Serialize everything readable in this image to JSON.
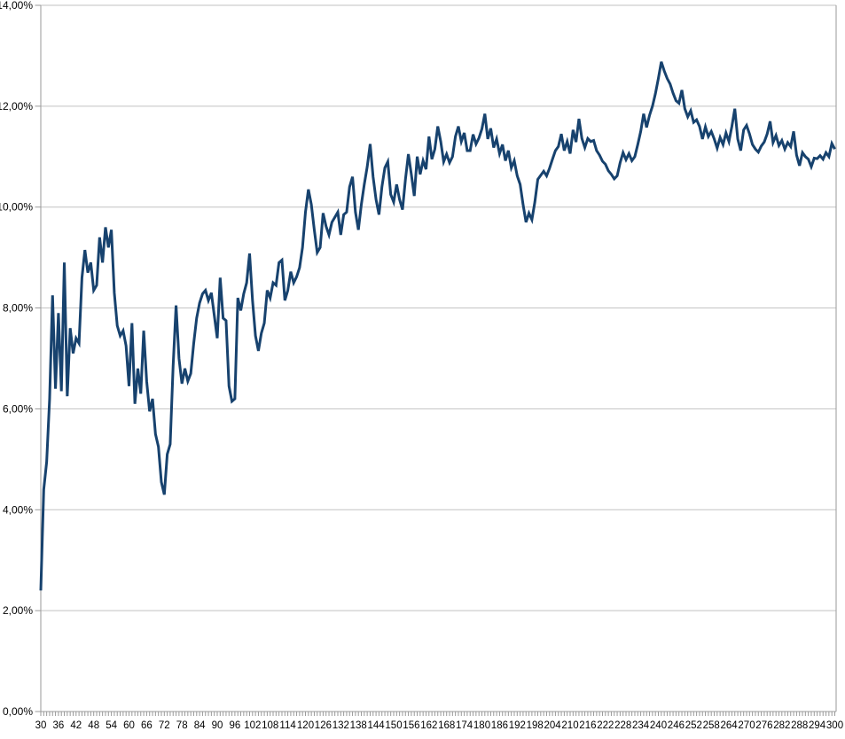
{
  "chart_data": {
    "type": "line",
    "title": "",
    "xlabel": "",
    "ylabel": "",
    "grid": true,
    "legend": false,
    "background": "#ffffff",
    "plot_border_color": "#9a9a9a",
    "gridline_color": "#c2c2c2",
    "tick_color": "#9a9a9a",
    "label_color": "#000000",
    "x_axis": {
      "start": 30,
      "end": 300,
      "step": 1,
      "minor_tick_every": 1,
      "label_every": 6,
      "tick_labels": [
        "30",
        "36",
        "42",
        "48",
        "54",
        "60",
        "66",
        "72",
        "78",
        "84",
        "90",
        "96",
        "102",
        "108",
        "114",
        "120",
        "126",
        "132",
        "138",
        "144",
        "150",
        "156",
        "162",
        "168",
        "174",
        "180",
        "186",
        "192",
        "198",
        "204",
        "210",
        "216",
        "222",
        "228",
        "234",
        "240",
        "246",
        "252",
        "258",
        "264",
        "270",
        "276",
        "282",
        "288",
        "294",
        "300"
      ]
    },
    "y_axis": {
      "min": 0,
      "max": 14,
      "tick_step": 2,
      "tick_labels": [
        "0,00%",
        "2,00%",
        "4,00%",
        "6,00%",
        "8,00%",
        "10,00%",
        "12,00%",
        "14,00%"
      ]
    },
    "series": [
      {
        "name": "series-1",
        "color": "#17426E",
        "x_start": 30,
        "x_step": 1,
        "values": [
          2.4,
          4.4,
          4.95,
          6.2,
          8.25,
          6.4,
          7.9,
          6.35,
          8.9,
          6.25,
          7.6,
          7.1,
          7.4,
          7.3,
          8.6,
          9.15,
          8.7,
          8.9,
          8.35,
          8.45,
          9.4,
          8.9,
          9.6,
          9.2,
          9.55,
          8.3,
          7.65,
          7.45,
          7.55,
          7.25,
          6.45,
          7.7,
          6.1,
          6.8,
          6.3,
          7.55,
          6.55,
          5.95,
          6.2,
          5.5,
          5.25,
          4.55,
          4.3,
          5.1,
          5.3,
          6.85,
          8.05,
          7.0,
          6.5,
          6.8,
          6.55,
          6.7,
          7.3,
          7.8,
          8.1,
          8.28,
          8.35,
          8.15,
          8.3,
          7.85,
          7.4,
          8.6,
          7.8,
          7.75,
          6.45,
          6.15,
          6.2,
          8.2,
          7.95,
          8.28,
          8.5,
          9.08,
          8.15,
          7.45,
          7.15,
          7.5,
          7.7,
          8.35,
          8.2,
          8.5,
          8.45,
          8.9,
          8.95,
          8.15,
          8.35,
          8.72,
          8.5,
          8.62,
          8.8,
          9.2,
          9.9,
          10.35,
          10.05,
          9.55,
          9.1,
          9.2,
          9.88,
          9.62,
          9.45,
          9.7,
          9.8,
          9.9,
          9.45,
          9.85,
          9.9,
          10.4,
          10.6,
          9.9,
          9.55,
          10.05,
          10.45,
          10.8,
          11.25,
          10.6,
          10.15,
          9.85,
          10.4,
          10.78,
          10.9,
          10.25,
          10.1,
          10.45,
          10.15,
          9.95,
          10.55,
          11.05,
          10.65,
          10.22,
          11.0,
          10.65,
          10.92,
          10.75,
          11.4,
          10.95,
          11.15,
          11.6,
          11.3,
          10.9,
          11.05,
          10.88,
          11.0,
          11.4,
          11.6,
          11.3,
          11.47,
          11.12,
          11.12,
          11.44,
          11.25,
          11.37,
          11.55,
          11.85,
          11.35,
          11.56,
          11.18,
          11.35,
          11.06,
          11.24,
          10.92,
          11.12,
          10.78,
          10.92,
          10.62,
          10.45,
          10.05,
          9.7,
          9.88,
          9.75,
          10.1,
          10.55,
          10.63,
          10.71,
          10.62,
          10.77,
          10.95,
          11.12,
          11.2,
          11.45,
          11.12,
          11.3,
          11.06,
          11.53,
          11.29,
          11.75,
          11.36,
          11.18,
          11.36,
          11.3,
          11.32,
          11.12,
          11.03,
          10.91,
          10.85,
          10.72,
          10.65,
          10.56,
          10.62,
          10.88,
          11.08,
          10.94,
          11.06,
          10.92,
          11.0,
          11.24,
          11.5,
          11.85,
          11.58,
          11.82,
          12.0,
          12.25,
          12.55,
          12.88,
          12.7,
          12.55,
          12.44,
          12.26,
          12.11,
          12.06,
          12.32,
          11.95,
          11.79,
          11.91,
          11.68,
          11.73,
          11.6,
          11.35,
          11.59,
          11.4,
          11.5,
          11.35,
          11.17,
          11.38,
          11.24,
          11.47,
          11.3,
          11.6,
          11.95,
          11.35,
          11.12,
          11.53,
          11.62,
          11.45,
          11.24,
          11.15,
          11.09,
          11.21,
          11.29,
          11.45,
          11.7,
          11.28,
          11.42,
          11.22,
          11.32,
          11.15,
          11.28,
          11.2,
          11.5,
          11.03,
          10.82,
          11.08,
          11.0,
          10.95,
          10.8,
          10.97,
          10.96,
          11.02,
          10.95,
          11.08,
          11.0,
          11.26,
          11.15
        ]
      }
    ]
  }
}
